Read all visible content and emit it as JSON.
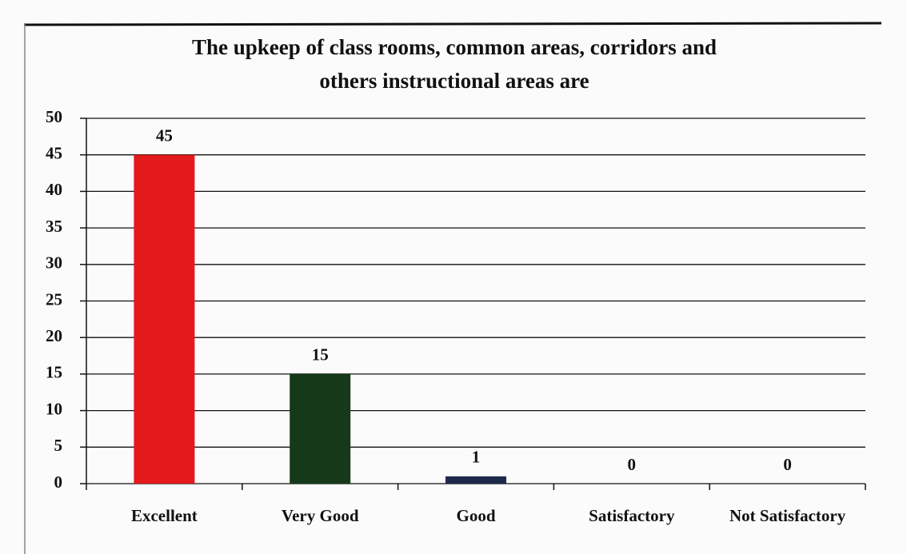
{
  "chart_data": {
    "type": "bar",
    "title": [
      "The upkeep  of class rooms, common areas, corridors and",
      "others instructional areas are"
    ],
    "categories": [
      "Excellent",
      "Very Good",
      "Good",
      "Satisfactory",
      "Not Satisfactory"
    ],
    "values": [
      45,
      15,
      1,
      0,
      0
    ],
    "colors": [
      "#e3191c",
      "#163a19",
      "#1e2a4a",
      "#1e2a4a",
      "#1e2a4a"
    ],
    "ylim": [
      0,
      50
    ],
    "yticks": [
      0,
      5,
      10,
      15,
      20,
      25,
      30,
      35,
      40,
      45,
      50
    ],
    "grid": true
  }
}
